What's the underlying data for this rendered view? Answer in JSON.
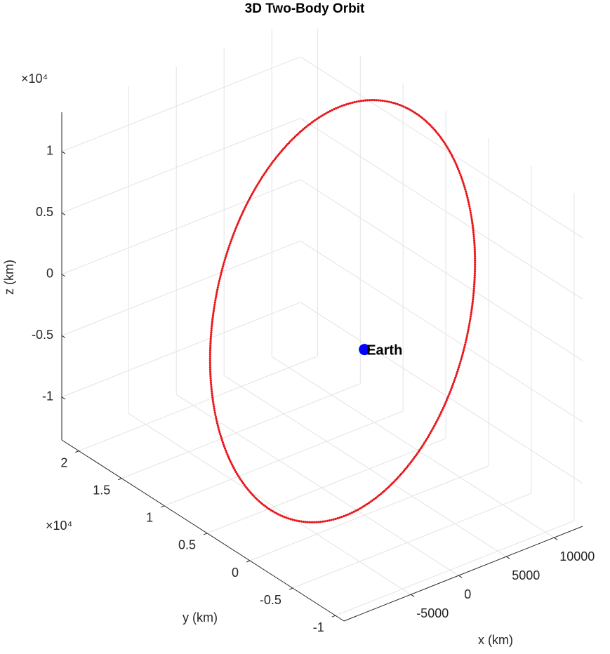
{
  "chart_data": {
    "type": "line3d",
    "title": "3D Two-Body Orbit",
    "xlabel": "x (km)",
    "ylabel": "y (km)",
    "zlabel": "z (km)",
    "xlim": [
      -12000,
      13000
    ],
    "ylim": [
      -11000,
      22000
    ],
    "zlim": [
      -13500,
      13200
    ],
    "xticks": [
      -5000,
      0,
      5000,
      10000
    ],
    "yticks": [
      {
        "value": -10000,
        "label": "-1"
      },
      {
        "value": -5000,
        "label": "-0.5"
      },
      {
        "value": 0,
        "label": "0"
      },
      {
        "value": 5000,
        "label": "0.5"
      },
      {
        "value": 10000,
        "label": "1"
      },
      {
        "value": 15000,
        "label": "1.5"
      },
      {
        "value": 20000,
        "label": "2"
      }
    ],
    "zticks": [
      {
        "value": -10000,
        "label": "-1"
      },
      {
        "value": -5000,
        "label": "-0.5"
      },
      {
        "value": 0,
        "label": "0"
      },
      {
        "value": 5000,
        "label": "0.5"
      },
      {
        "value": 10000,
        "label": "1"
      }
    ],
    "y_exponent": "×10⁴",
    "z_exponent": "×10⁴",
    "grid": true,
    "series": [
      {
        "color": "#e8161b",
        "x": [
          -10799,
          -9463,
          -7436,
          -4864,
          -1918,
          1205,
          4291,
          7126,
          9520,
          11301,
          12364,
          12630,
          12071,
          10735,
          8709,
          6137,
          3190,
          67,
          -3019,
          -5854,
          -8247,
          -10029,
          -11092,
          -11358
        ],
        "y": [
          -2931,
          -5296,
          -7075,
          -8147,
          -8444,
          -7943,
          -6677,
          -4732,
          -2246,
          623,
          3670,
          6691,
          9476,
          11841,
          13620,
          14691,
          14989,
          14488,
          13222,
          11277,
          8790,
          5922,
          2875,
          -146
        ],
        "z": [
          -9065,
          -8762,
          -7759,
          -6131,
          -3987,
          -1470,
          1250,
          3982,
          6542,
          8753,
          10473,
          11581,
          11993,
          11689,
          10687,
          9059,
          6915,
          4397,
          1679,
          -1054,
          -3614,
          -5825,
          -7545,
          -8653
        ]
      }
    ],
    "points": [
      {
        "label": "Earth",
        "x": 0,
        "y": 0,
        "z": 0,
        "color": "#0000ff"
      }
    ]
  }
}
